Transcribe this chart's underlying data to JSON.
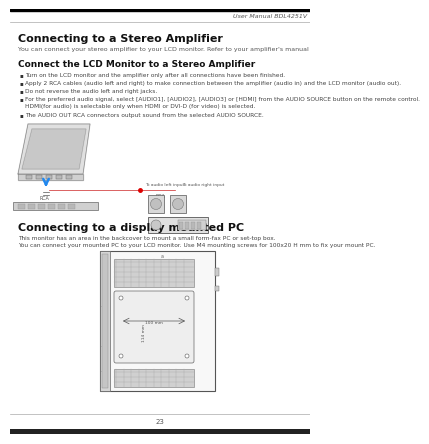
{
  "bg_color": "#ffffff",
  "header_line_color": "#aaaaaa",
  "footer_line_color": "#aaaaaa",
  "header_text": "User Manual BDL4251V",
  "footer_text": "23",
  "title1": "Connecting to a Stereo Amplifier",
  "subtitle1": "You can connect your stereo amplifier to your LCD monitor. Refer to your amplifier's manual for further information.",
  "section1": "Connect the LCD Monitor to a Stereo Amplifier",
  "bullets": [
    "Turn on the LCD monitor and the amplifier only after all connections have been finished.",
    "Apply 2 RCA cables (audio left and right) to make connection between the amplifier (audio in) and the LCD monitor (audio out).",
    "Do not reverse the audio left and right jacks.",
    "For the preferred audio signal, select [AUDIO1], [AUDIO2], [AUDIO3] or [HDMI] from the AUDIO SOURCE button on the remote control. HDMI(for audio) is selectable only when HDMI or DVI-D (for video) is selected.",
    "The AUDIO OUT RCA connectors output sound from the selected AUDIO SOURCE."
  ],
  "title2": "Connecting to a display mounted PC",
  "subtitle2_line1": "This monitor has an area in the backcover to mount a small form-fax PC or set-top box.",
  "subtitle2_line2": "You can connect your mounted PC to your LCD monitor. Use M4 mounting screws for 100x20 H mm to fix your mount PC."
}
